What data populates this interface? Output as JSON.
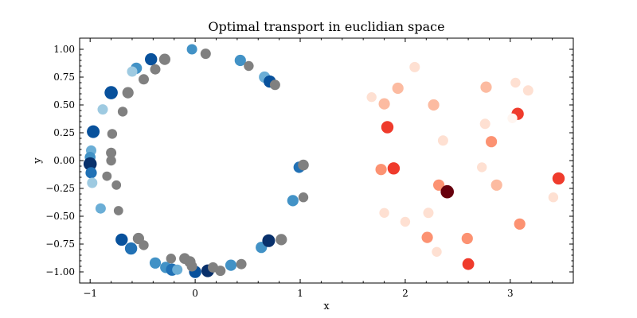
{
  "chart_data": {
    "type": "scatter",
    "title": "Optimal transport in euclidian space",
    "xlabel": "x",
    "ylabel": "y",
    "xlim": [
      -1.1,
      3.6
    ],
    "ylim": [
      -1.1,
      1.1
    ],
    "x_ticks": [
      -1,
      0,
      1,
      2,
      3
    ],
    "y_ticks": [
      -1.0,
      -0.75,
      -0.5,
      -0.25,
      0.0,
      0.25,
      0.5,
      0.75,
      1.0
    ],
    "x_tick_labels": [
      "−1",
      "0",
      "1",
      "2",
      "3"
    ],
    "y_tick_labels": [
      "−1.00",
      "−0.75",
      "−0.50",
      "−0.25",
      "0.00",
      "0.25",
      "0.50",
      "0.75",
      "1.00"
    ],
    "grid": false,
    "colors": {
      "transported": "#808080",
      "blues": [
        "#deebf7",
        "#9ecae1",
        "#6baed6",
        "#4292c6",
        "#2171b5",
        "#08519c",
        "#08306b"
      ],
      "reds": [
        "#fff5f0",
        "#fee0d2",
        "#fcbba1",
        "#fc9272",
        "#fb6a4a",
        "#ef3b2c",
        "#cb181d",
        "#67000d"
      ]
    },
    "series": [
      {
        "style": "blue-circle",
        "points": [
          {
            "x": -0.03,
            "y": 1.0,
            "w": 0.5,
            "s": 0.5
          },
          {
            "x": -0.56,
            "y": 0.83,
            "w": 0.55,
            "s": 0.6
          },
          {
            "x": -0.42,
            "y": 0.91,
            "w": 0.75,
            "s": 0.7
          },
          {
            "x": -0.6,
            "y": 0.8,
            "w": 0.1,
            "s": 0.5
          },
          {
            "x": 0.43,
            "y": 0.9,
            "w": 0.5,
            "s": 0.6
          },
          {
            "x": 0.66,
            "y": 0.75,
            "w": 0.3,
            "s": 0.6
          },
          {
            "x": 0.71,
            "y": 0.71,
            "w": 0.8,
            "s": 0.7
          },
          {
            "x": -0.8,
            "y": 0.61,
            "w": 0.85,
            "s": 0.8
          },
          {
            "x": -0.88,
            "y": 0.46,
            "w": 0.2,
            "s": 0.5
          },
          {
            "x": -0.97,
            "y": 0.26,
            "w": 0.85,
            "s": 0.75
          },
          {
            "x": -0.99,
            "y": 0.09,
            "w": 0.4,
            "s": 0.5
          },
          {
            "x": -1.0,
            "y": 0.03,
            "w": 0.55,
            "s": 0.55
          },
          {
            "x": -1.0,
            "y": -0.03,
            "w": 1.0,
            "s": 0.8
          },
          {
            "x": -0.99,
            "y": -0.11,
            "w": 0.65,
            "s": 0.6
          },
          {
            "x": -0.98,
            "y": -0.2,
            "w": 0.15,
            "s": 0.5
          },
          {
            "x": -0.9,
            "y": -0.43,
            "w": 0.4,
            "s": 0.5
          },
          {
            "x": -0.7,
            "y": -0.71,
            "w": 0.75,
            "s": 0.7
          },
          {
            "x": -0.61,
            "y": -0.79,
            "w": 0.7,
            "s": 0.7
          },
          {
            "x": -0.38,
            "y": -0.92,
            "w": 0.5,
            "s": 0.6
          },
          {
            "x": -0.28,
            "y": -0.96,
            "w": 0.5,
            "s": 0.6
          },
          {
            "x": -0.22,
            "y": -0.98,
            "w": 0.7,
            "s": 0.7
          },
          {
            "x": -0.17,
            "y": -0.98,
            "w": 0.25,
            "s": 0.5
          },
          {
            "x": 0.0,
            "y": -1.0,
            "w": 0.85,
            "s": 0.7
          },
          {
            "x": 0.12,
            "y": -0.99,
            "w": 1.0,
            "s": 0.75
          },
          {
            "x": 0.34,
            "y": -0.94,
            "w": 0.5,
            "s": 0.6
          },
          {
            "x": 0.63,
            "y": -0.78,
            "w": 0.5,
            "s": 0.6
          },
          {
            "x": 0.7,
            "y": -0.72,
            "w": 0.95,
            "s": 0.75
          },
          {
            "x": 0.93,
            "y": -0.36,
            "w": 0.45,
            "s": 0.6
          },
          {
            "x": 0.99,
            "y": -0.06,
            "w": 0.6,
            "s": 0.6
          }
        ]
      },
      {
        "style": "gray-circle",
        "points": [
          {
            "x": 0.1,
            "y": 0.96,
            "s": 0.5
          },
          {
            "x": -0.29,
            "y": 0.91,
            "s": 0.6
          },
          {
            "x": -0.38,
            "y": 0.82,
            "s": 0.5
          },
          {
            "x": -0.49,
            "y": 0.73,
            "s": 0.5
          },
          {
            "x": 0.51,
            "y": 0.85,
            "s": 0.45
          },
          {
            "x": 0.76,
            "y": 0.68,
            "s": 0.5
          },
          {
            "x": -0.64,
            "y": 0.61,
            "s": 0.6
          },
          {
            "x": -0.69,
            "y": 0.44,
            "s": 0.45
          },
          {
            "x": -0.79,
            "y": 0.24,
            "s": 0.45
          },
          {
            "x": -0.8,
            "y": 0.07,
            "s": 0.5
          },
          {
            "x": -0.8,
            "y": 0.0,
            "s": 0.45
          },
          {
            "x": -0.84,
            "y": -0.14,
            "s": 0.4
          },
          {
            "x": -0.75,
            "y": -0.22,
            "s": 0.4
          },
          {
            "x": -0.73,
            "y": -0.45,
            "s": 0.4
          },
          {
            "x": -0.54,
            "y": -0.7,
            "s": 0.6
          },
          {
            "x": -0.49,
            "y": -0.76,
            "s": 0.45
          },
          {
            "x": -0.23,
            "y": -0.88,
            "s": 0.45
          },
          {
            "x": -0.1,
            "y": -0.88,
            "s": 0.55
          },
          {
            "x": -0.05,
            "y": -0.91,
            "s": 0.6
          },
          {
            "x": -0.03,
            "y": -0.95,
            "s": 0.5
          },
          {
            "x": 0.17,
            "y": -0.96,
            "s": 0.5
          },
          {
            "x": 0.24,
            "y": -0.99,
            "s": 0.5
          },
          {
            "x": 0.44,
            "y": -0.93,
            "s": 0.5
          },
          {
            "x": 0.82,
            "y": -0.71,
            "s": 0.6
          },
          {
            "x": 1.03,
            "y": -0.33,
            "s": 0.45
          },
          {
            "x": 1.03,
            "y": -0.04,
            "s": 0.55
          }
        ]
      },
      {
        "style": "red-circle",
        "points": [
          {
            "x": 2.09,
            "y": 0.84,
            "w": 0.15,
            "s": 0.5
          },
          {
            "x": 1.93,
            "y": 0.65,
            "w": 0.35,
            "s": 0.6
          },
          {
            "x": 2.77,
            "y": 0.66,
            "w": 0.35,
            "s": 0.6
          },
          {
            "x": 3.05,
            "y": 0.7,
            "w": 0.1,
            "s": 0.45
          },
          {
            "x": 3.17,
            "y": 0.63,
            "w": 0.15,
            "s": 0.5
          },
          {
            "x": 1.68,
            "y": 0.57,
            "w": 0.1,
            "s": 0.45
          },
          {
            "x": 1.8,
            "y": 0.51,
            "w": 0.35,
            "s": 0.6
          },
          {
            "x": 2.27,
            "y": 0.5,
            "w": 0.35,
            "s": 0.6
          },
          {
            "x": 3.07,
            "y": 0.42,
            "w": 0.75,
            "s": 0.7
          },
          {
            "x": 3.02,
            "y": 0.38,
            "w": 0.05,
            "s": 0.45
          },
          {
            "x": 1.83,
            "y": 0.3,
            "w": 0.7,
            "s": 0.7
          },
          {
            "x": 2.76,
            "y": 0.33,
            "w": 0.15,
            "s": 0.5
          },
          {
            "x": 2.36,
            "y": 0.18,
            "w": 0.15,
            "s": 0.5
          },
          {
            "x": 2.82,
            "y": 0.17,
            "w": 0.4,
            "s": 0.6
          },
          {
            "x": 1.77,
            "y": -0.08,
            "w": 0.45,
            "s": 0.6
          },
          {
            "x": 1.89,
            "y": -0.07,
            "w": 0.65,
            "s": 0.7
          },
          {
            "x": 2.73,
            "y": -0.06,
            "w": 0.1,
            "s": 0.45
          },
          {
            "x": 2.32,
            "y": -0.22,
            "w": 0.4,
            "s": 0.6
          },
          {
            "x": 2.4,
            "y": -0.28,
            "w": 1.0,
            "s": 0.8
          },
          {
            "x": 2.87,
            "y": -0.22,
            "w": 0.35,
            "s": 0.6
          },
          {
            "x": 3.46,
            "y": -0.16,
            "w": 0.7,
            "s": 0.7
          },
          {
            "x": 3.41,
            "y": -0.33,
            "w": 0.1,
            "s": 0.45
          },
          {
            "x": 1.8,
            "y": -0.47,
            "w": 0.1,
            "s": 0.45
          },
          {
            "x": 2.0,
            "y": -0.55,
            "w": 0.1,
            "s": 0.45
          },
          {
            "x": 2.22,
            "y": -0.47,
            "w": 0.15,
            "s": 0.5
          },
          {
            "x": 3.09,
            "y": -0.57,
            "w": 0.4,
            "s": 0.6
          },
          {
            "x": 2.21,
            "y": -0.69,
            "w": 0.4,
            "s": 0.6
          },
          {
            "x": 2.59,
            "y": -0.7,
            "w": 0.45,
            "s": 0.6
          },
          {
            "x": 2.3,
            "y": -0.82,
            "w": 0.15,
            "s": 0.45
          },
          {
            "x": 2.6,
            "y": -0.93,
            "w": 0.65,
            "s": 0.65
          }
        ]
      }
    ]
  }
}
